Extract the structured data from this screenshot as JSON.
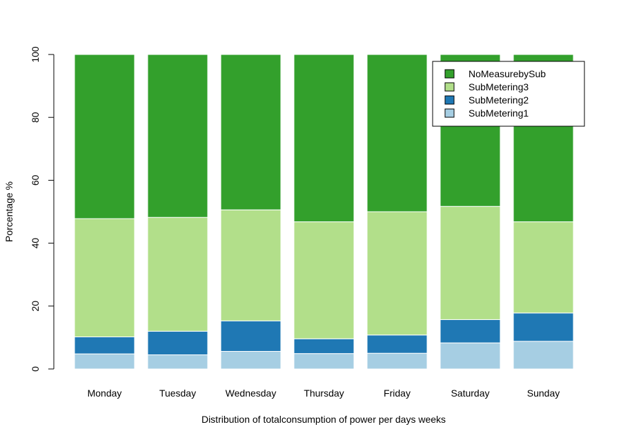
{
  "chart_data": {
    "type": "bar",
    "stacked": true,
    "title": "",
    "xlabel": "Distribution of totalconsumption of power per days weeks",
    "ylabel": "Porcentage %",
    "ylim": [
      0,
      100
    ],
    "yticks": [
      0,
      20,
      40,
      60,
      80,
      100
    ],
    "grid": false,
    "legend_position": "top-right",
    "categories": [
      "Monday",
      "Tuesday",
      "Wednesday",
      "Thursday",
      "Friday",
      "Saturday",
      "Sunday"
    ],
    "series": [
      {
        "name": "SubMetering1",
        "color": "#A6CEE3",
        "values": [
          4.8,
          4.5,
          5.6,
          4.9,
          5.0,
          8.3,
          8.8
        ]
      },
      {
        "name": "SubMetering2",
        "color": "#1F78B4",
        "values": [
          5.4,
          7.5,
          9.7,
          4.7,
          5.8,
          7.4,
          9.0
        ]
      },
      {
        "name": "SubMetering3",
        "color": "#B2DF8A",
        "values": [
          37.6,
          36.2,
          35.3,
          37.2,
          39.2,
          36.0,
          29.0
        ]
      },
      {
        "name": "NoMeasurebySub",
        "color": "#33A02C",
        "values": [
          52.2,
          51.8,
          49.4,
          53.2,
          50.0,
          48.3,
          53.2
        ]
      }
    ],
    "legend_order": [
      "NoMeasurebySub",
      "SubMetering3",
      "SubMetering2",
      "SubMetering1"
    ]
  }
}
